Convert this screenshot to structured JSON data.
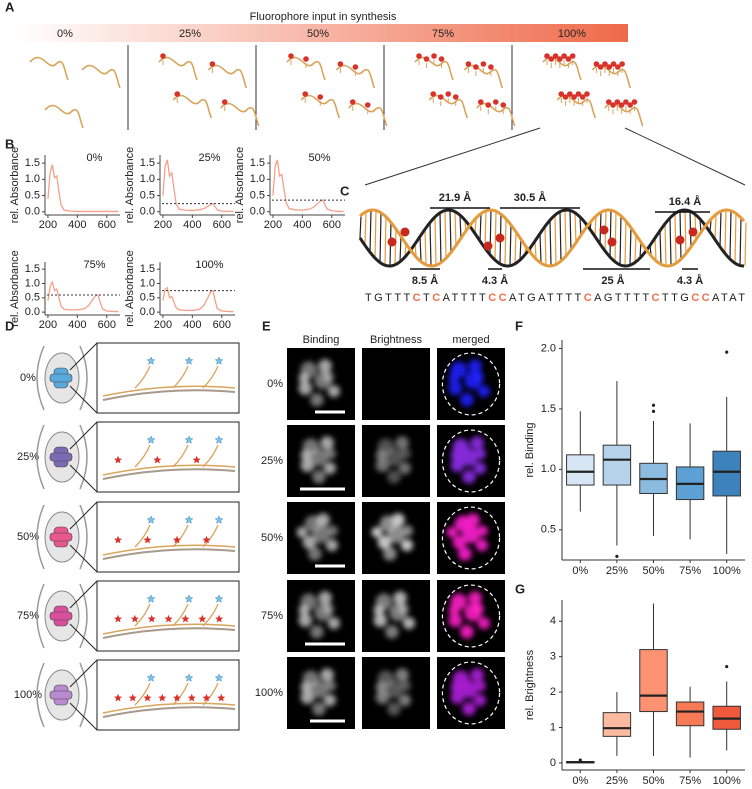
{
  "panel_labels": [
    "A",
    "B",
    "C",
    "D",
    "E",
    "F",
    "G"
  ],
  "panel_a": {
    "title": "Fluorophore input in synthesis",
    "levels": [
      "0%",
      "25%",
      "50%",
      "75%",
      "100%"
    ]
  },
  "panel_c": {
    "distances_above": [
      "21.9 Å",
      "30.5 Å",
      "16.4 Å"
    ],
    "distances_below": [
      "8.5 Å",
      "4.3 Å",
      "25 Å",
      "4.3 Å"
    ],
    "sequence": [
      {
        "text": "TGTTT",
        "highlight": false
      },
      {
        "text": "C",
        "highlight": true
      },
      {
        "text": "T",
        "highlight": false
      },
      {
        "text": "C",
        "highlight": true
      },
      {
        "text": "ATTTT",
        "highlight": false
      },
      {
        "text": "CC",
        "highlight": true
      },
      {
        "text": "ATGATTTT",
        "highlight": false
      },
      {
        "text": "C",
        "highlight": true
      },
      {
        "text": "AGTTTT",
        "highlight": false
      },
      {
        "text": "C",
        "highlight": true
      },
      {
        "text": "TTG",
        "highlight": false
      },
      {
        "text": "CC",
        "highlight": true
      },
      {
        "text": "ATAT",
        "highlight": false
      }
    ],
    "highlight_color": "#f0704f"
  },
  "panel_d": {
    "levels": [
      "0%",
      "25%",
      "50%",
      "75%",
      "100%"
    ]
  },
  "panel_e": {
    "columns": [
      "Binding",
      "Brightness",
      "merged"
    ],
    "rows": [
      {
        "label": "0%",
        "merged_color": "#2020ff"
      },
      {
        "label": "25%",
        "merged_color": "#8f2bea"
      },
      {
        "label": "50%",
        "merged_color": "#ff20d0"
      },
      {
        "label": "75%",
        "merged_color": "#ff20c8"
      },
      {
        "label": "100%",
        "merged_color": "#b020dc"
      }
    ]
  },
  "chart_data": [
    {
      "type": "line",
      "title": "0%",
      "ylabel": "rel. Absorbance",
      "color": "#f4a08a",
      "x": [
        200,
        215,
        230,
        245,
        260,
        275,
        290,
        310,
        350,
        400,
        450,
        480,
        510,
        525,
        540,
        555,
        570,
        600,
        650,
        680
      ],
      "values": [
        0.4,
        1.2,
        1.45,
        1.05,
        1.1,
        0.6,
        0.2,
        0.05,
        0.02,
        0.01,
        0.01,
        0.01,
        0.01,
        0.01,
        0.01,
        0.01,
        0.01,
        0.01,
        0.01,
        0.01
      ],
      "xlim": [
        180,
        690
      ],
      "ylim": [
        -0.1,
        1.75
      ],
      "xticks": [
        200,
        400,
        600
      ],
      "yticks": [
        {
          "value": 0,
          "label": "0.0"
        },
        0.5,
        {
          "value": 1,
          "label": "1.0"
        },
        1.5
      ]
    },
    {
      "type": "line",
      "title": "25%",
      "ylabel": "rel. Absorbance",
      "color": "#f4a08a",
      "x": [
        200,
        215,
        230,
        245,
        260,
        275,
        290,
        310,
        350,
        400,
        450,
        480,
        510,
        525,
        540,
        555,
        570,
        600,
        650,
        680
      ],
      "values": [
        0.5,
        1.4,
        1.6,
        1.1,
        1.2,
        0.7,
        0.25,
        0.08,
        0.05,
        0.04,
        0.06,
        0.1,
        0.18,
        0.23,
        0.25,
        0.15,
        0.06,
        0.02,
        0.01,
        0.01
      ],
      "ref_line": 0.25,
      "xlim": [
        180,
        690
      ],
      "ylim": [
        -0.1,
        1.75
      ],
      "xticks": [
        200,
        400,
        600
      ],
      "yticks": [
        {
          "value": 0,
          "label": "0.0"
        },
        0.5,
        {
          "value": 1,
          "label": "1.0"
        },
        1.5
      ]
    },
    {
      "type": "line",
      "title": "50%",
      "ylabel": "rel. Absorbance",
      "color": "#f4a08a",
      "x": [
        200,
        215,
        230,
        245,
        260,
        275,
        290,
        310,
        350,
        400,
        450,
        480,
        510,
        525,
        540,
        555,
        570,
        600,
        650,
        680
      ],
      "values": [
        0.5,
        1.4,
        1.6,
        1.1,
        1.15,
        0.7,
        0.28,
        0.1,
        0.06,
        0.05,
        0.08,
        0.15,
        0.28,
        0.34,
        0.36,
        0.2,
        0.08,
        0.03,
        0.01,
        0.01
      ],
      "ref_line": 0.36,
      "xlim": [
        180,
        690
      ],
      "ylim": [
        -0.1,
        1.75
      ],
      "xticks": [
        200,
        400,
        600
      ],
      "yticks": [
        {
          "value": 0,
          "label": "0.0"
        },
        0.5,
        {
          "value": 1,
          "label": "1.0"
        },
        1.5
      ]
    },
    {
      "type": "line",
      "title": "75%",
      "ylabel": "rel. Absorbance",
      "color": "#f4a08a",
      "x": [
        200,
        215,
        230,
        245,
        260,
        275,
        290,
        310,
        350,
        400,
        450,
        480,
        510,
        525,
        540,
        555,
        570,
        600,
        650,
        680
      ],
      "values": [
        0.4,
        0.9,
        1.05,
        0.75,
        0.8,
        0.5,
        0.2,
        0.1,
        0.08,
        0.08,
        0.12,
        0.25,
        0.48,
        0.58,
        0.6,
        0.35,
        0.12,
        0.04,
        0.02,
        0.02
      ],
      "ref_line": 0.6,
      "xlim": [
        180,
        690
      ],
      "ylim": [
        -0.1,
        1.75
      ],
      "xticks": [
        200,
        400,
        600
      ],
      "yticks": [
        {
          "value": 0,
          "label": "0.0"
        },
        0.5,
        {
          "value": 1,
          "label": "1.0"
        },
        1.5
      ]
    },
    {
      "type": "line",
      "title": "100%",
      "ylabel": "rel. Absorbance",
      "color": "#f4a08a",
      "x": [
        200,
        215,
        230,
        245,
        260,
        275,
        290,
        310,
        350,
        400,
        450,
        480,
        510,
        525,
        540,
        555,
        570,
        600,
        650,
        680
      ],
      "values": [
        0.4,
        0.8,
        0.85,
        0.5,
        0.55,
        0.35,
        0.15,
        0.08,
        0.06,
        0.06,
        0.1,
        0.25,
        0.55,
        0.72,
        0.75,
        0.4,
        0.12,
        0.04,
        0.02,
        0.02
      ],
      "ref_line": 0.75,
      "xlim": [
        180,
        690
      ],
      "ylim": [
        -0.1,
        1.75
      ],
      "xticks": [
        200,
        400,
        600
      ],
      "yticks": [
        {
          "value": 0,
          "label": "0.0"
        },
        0.5,
        {
          "value": 1,
          "label": "1.0"
        },
        1.5
      ]
    },
    {
      "type": "box",
      "ylabel": "rel. Binding",
      "categories": [
        "0%",
        "25%",
        "50%",
        "75%",
        "100%"
      ],
      "colors": [
        "#d6e6f4",
        "#b7d3ec",
        "#8cbbe0",
        "#5da0d3",
        "#3e82bd"
      ],
      "boxes": [
        {
          "low": 0.65,
          "q1": 0.87,
          "median": 0.98,
          "q3": 1.12,
          "high": 1.48
        },
        {
          "low": 0.37,
          "q1": 0.87,
          "median": 1.08,
          "q3": 1.2,
          "high": 1.73,
          "outliers": [
            0.28
          ]
        },
        {
          "low": 0.45,
          "q1": 0.8,
          "median": 0.92,
          "q3": 1.05,
          "high": 1.4,
          "outliers": [
            1.48,
            1.53
          ]
        },
        {
          "low": 0.42,
          "q1": 0.75,
          "median": 0.88,
          "q3": 1.02,
          "high": 1.38
        },
        {
          "low": 0.3,
          "q1": 0.78,
          "median": 0.98,
          "q3": 1.15,
          "high": 1.6,
          "outliers": [
            1.97
          ]
        }
      ],
      "ylim": [
        0.25,
        2.07
      ],
      "yticks": [
        0.5,
        {
          "value": 1,
          "label": "1.0"
        },
        1.5,
        {
          "value": 2,
          "label": "2.0"
        }
      ]
    },
    {
      "type": "box",
      "ylabel": "rel. Brightness",
      "categories": [
        "0%",
        "25%",
        "50%",
        "75%",
        "100%"
      ],
      "colors": [
        "#fde0d2",
        "#fcbba1",
        "#fc9272",
        "#f67a56",
        "#ef5a3c"
      ],
      "boxes": [
        {
          "low": 0,
          "q1": 0,
          "median": 0.02,
          "q3": 0.04,
          "high": 0.06,
          "outliers": [
            0.08
          ]
        },
        {
          "low": 0.2,
          "q1": 0.75,
          "median": 0.98,
          "q3": 1.42,
          "high": 2.0
        },
        {
          "low": 0.2,
          "q1": 1.45,
          "median": 1.9,
          "q3": 3.2,
          "high": 4.5
        },
        {
          "low": 0.15,
          "q1": 1.05,
          "median": 1.45,
          "q3": 1.72,
          "high": 2.15
        },
        {
          "low": 0.35,
          "q1": 0.95,
          "median": 1.25,
          "q3": 1.6,
          "high": 2.3,
          "outliers": [
            2.72
          ]
        }
      ],
      "ylim": [
        -0.2,
        4.6
      ],
      "yticks": [
        0,
        1,
        2,
        3,
        4
      ]
    }
  ]
}
